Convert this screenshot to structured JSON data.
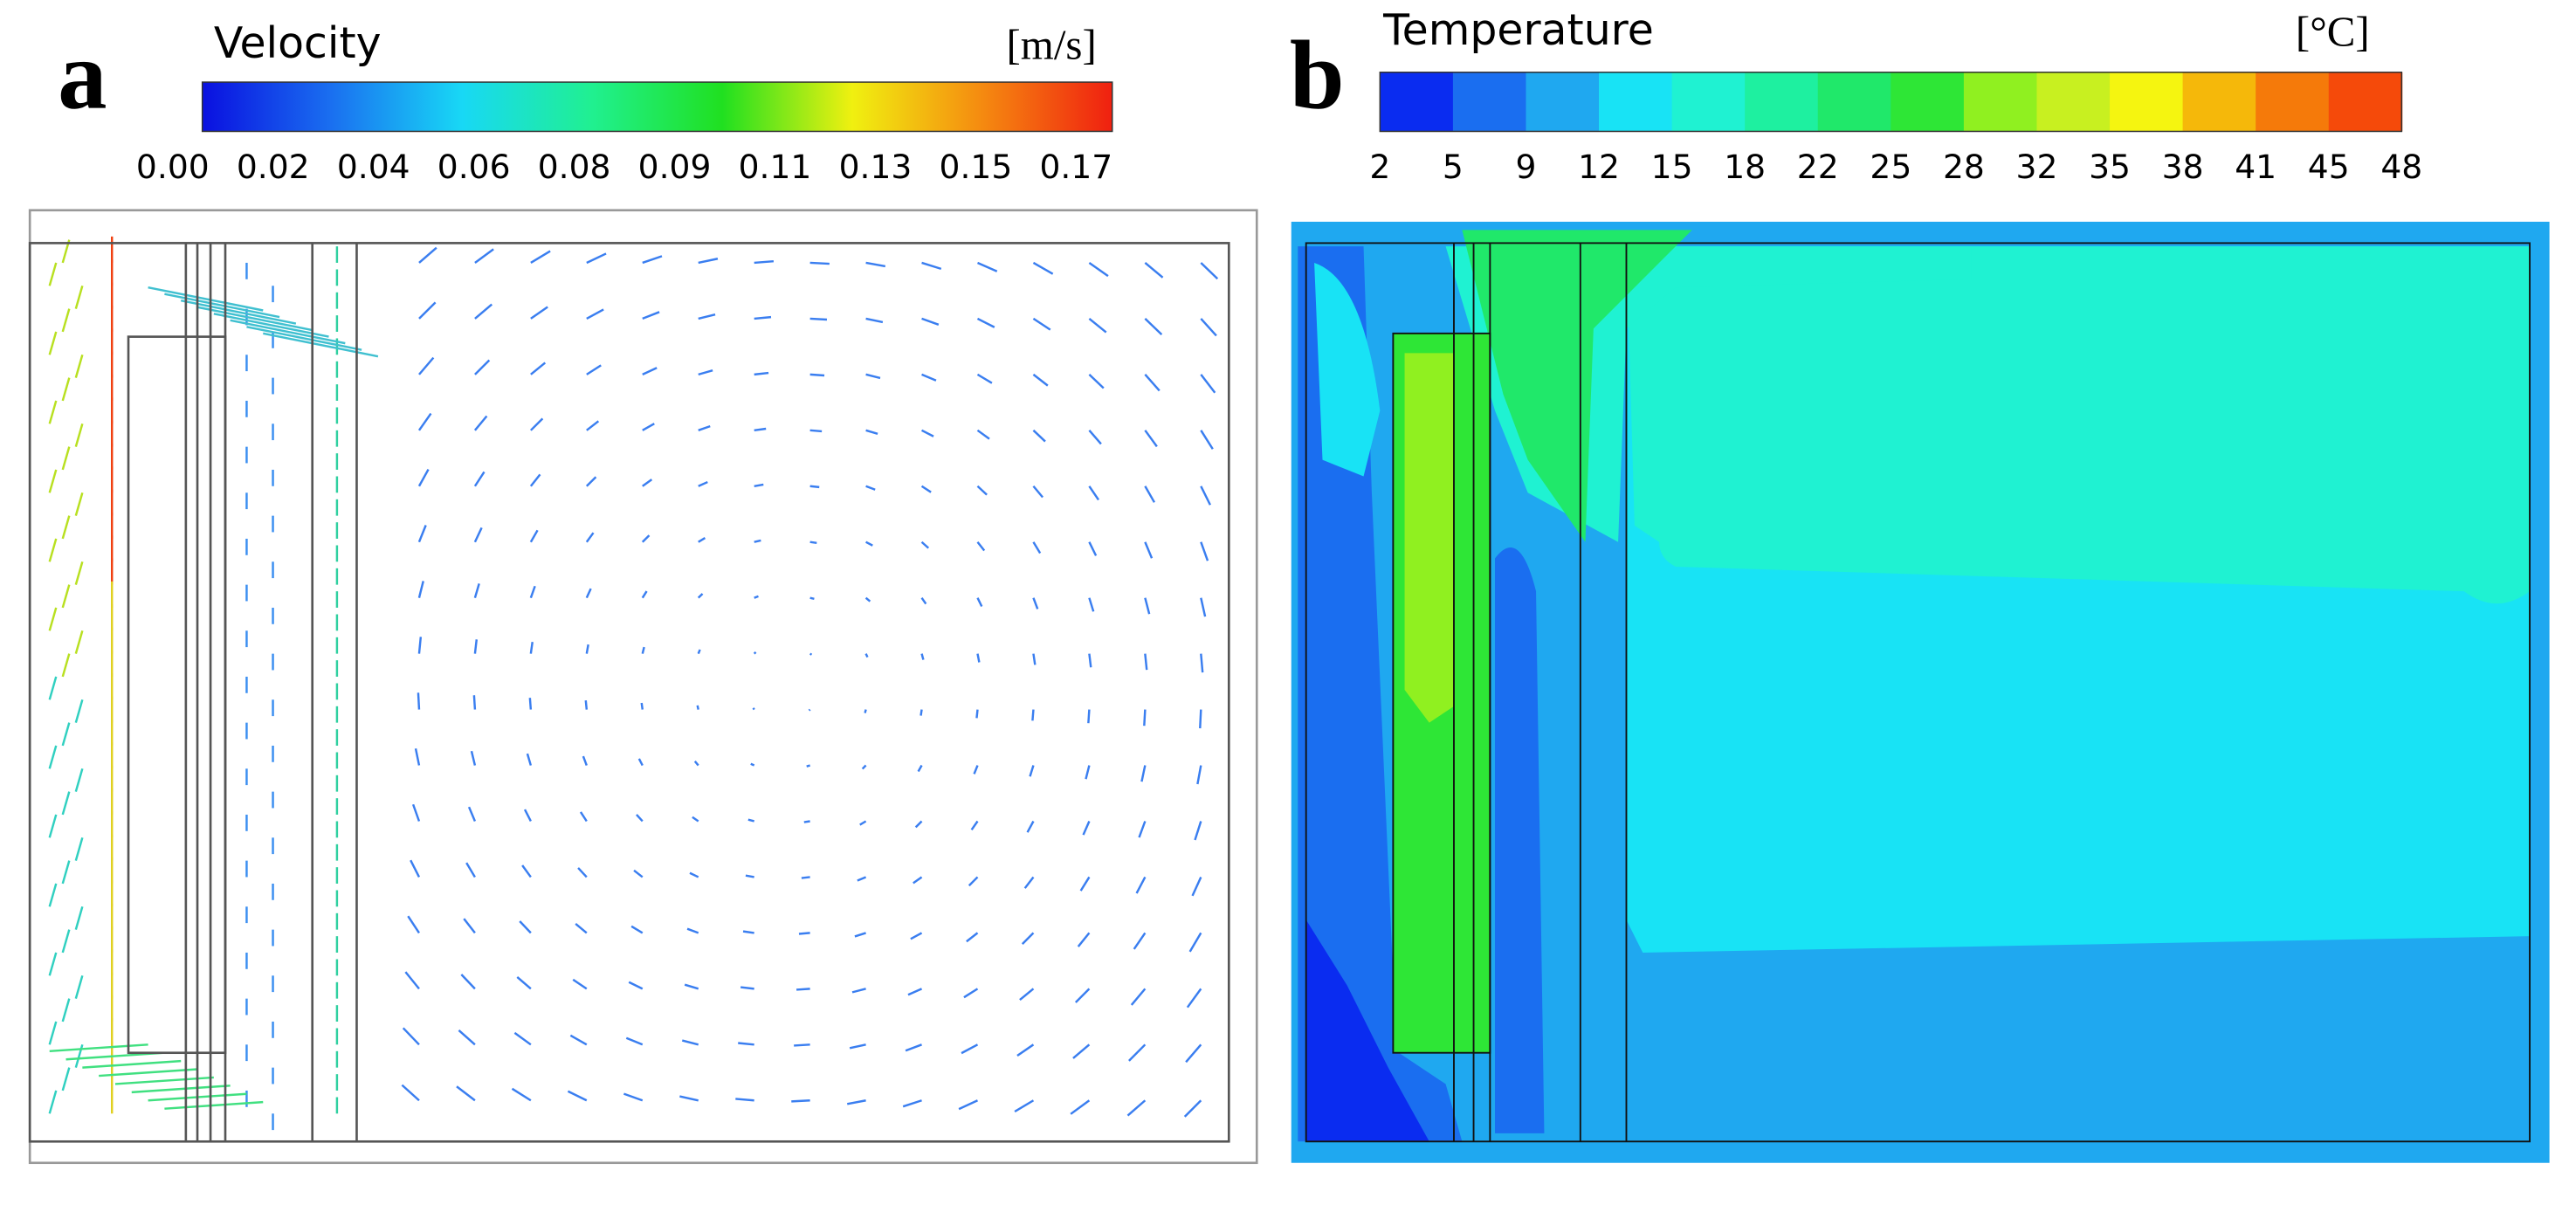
{
  "panels": [
    {
      "label": "a",
      "colorbar": {
        "title": "Velocity",
        "unit": "[m/s]",
        "ticks": [
          "0.00",
          "0.02",
          "0.04",
          "0.06",
          "0.08",
          "0.09",
          "0.11",
          "0.13",
          "0.15",
          "0.17"
        ],
        "colors": [
          "#0a10e0",
          "#1a70f0",
          "#18d8f5",
          "#20f090",
          "#20e020",
          "#f0f010",
          "#f58a10",
          "#f02010"
        ]
      }
    },
    {
      "label": "b",
      "colorbar": {
        "title": "Temperature",
        "unit": "[°C]",
        "ticks": [
          2,
          5,
          9,
          12,
          15,
          18,
          22,
          25,
          28,
          32,
          35,
          38,
          41,
          45,
          48
        ],
        "colors": [
          "#0a2cf0",
          "#1a6ef0",
          "#1fa8f0",
          "#18e3f5",
          "#1ff2d2",
          "#1ef0a0",
          "#20e86a",
          "#2ee636",
          "#90f020",
          "#c8f020",
          "#f5f510",
          "#f5b80a",
          "#f57a0a",
          "#f54a0a"
        ]
      }
    }
  ]
}
